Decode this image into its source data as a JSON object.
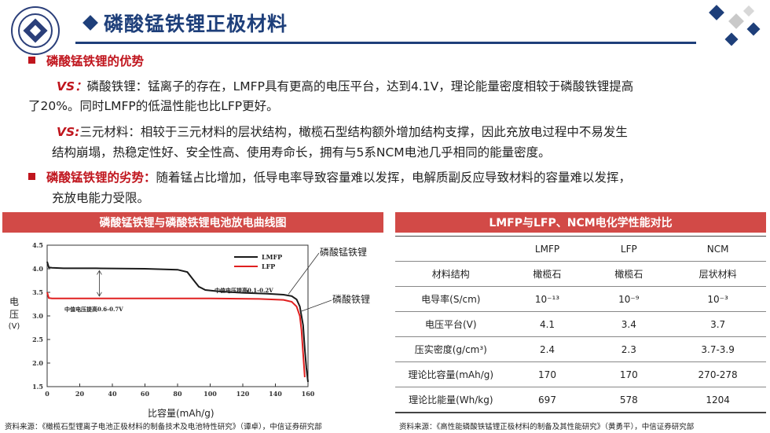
{
  "header": {
    "title": "磷酸锰铁锂正极材料",
    "logo_text": "CENTRAL SOUTH UNIVERSITY"
  },
  "advantages": {
    "heading": "磷酸锰铁锂的优势",
    "vs1_label": "VS：",
    "vs1_line1": "磷酸铁锂：锰离子的存在，LMFP具有更高的电压平台，达到4.1V，理论能量密度相较于磷酸铁锂提高",
    "vs1_line2": "了20%。同时LMFP的低温性能也比LFP更好。",
    "vs2_label": "VS:",
    "vs2_line1": "三元材料：相较于三元材料的层状结构，橄榄石型结构额外增加结构支撑，因此充放电过程中不易发生",
    "vs2_line2": "结构崩塌，热稳定性好、安全性高、使用寿命长，拥有与5系NCM电池几乎相同的能量密度。"
  },
  "disadvantages": {
    "heading": "磷酸锰铁锂的劣势：",
    "line1": "随着锰占比增加，低导电率导致容量难以发挥，电解质副反应导致材料的容量难以发挥，",
    "line2": "充放电能力受限。"
  },
  "left_panel": {
    "title": "磷酸锰铁锂与磷酸铁锂电池放电曲线图",
    "ylabel_chars": [
      "电",
      "压",
      "(V)"
    ],
    "xlabel": "比容量(mAh/g)",
    "callout_lmfp": "磷酸锰铁锂",
    "callout_lfp": "磷酸铁锂",
    "source": "资料来源：《橄榄石型锂离子电池正极材料的制备技术及电池特性研究》（谭卓），中信证券研究部"
  },
  "chart_data": {
    "type": "line",
    "xlabel": "比容量(mAh/g)",
    "ylabel": "电压(V)",
    "xlim": [
      0,
      160
    ],
    "ylim": [
      1.5,
      4.5
    ],
    "xticks": [
      "0",
      "20",
      "40",
      "60",
      "80",
      "100",
      "120",
      "140",
      "160"
    ],
    "yticks": [
      "1.5",
      "2.0",
      "2.5",
      "3.0",
      "3.5",
      "4.0",
      "4.5"
    ],
    "annotations": [
      "中值电压提高0.1-0.2V",
      "中值电压提高0.6-0.7V"
    ],
    "series": [
      {
        "name": "LMFP",
        "color": "#1a1a1a",
        "x": [
          0,
          1,
          3,
          10,
          30,
          60,
          80,
          86,
          90,
          93,
          97,
          105,
          120,
          135,
          145,
          150,
          153,
          155,
          157,
          158,
          159,
          160
        ],
        "y": [
          4.15,
          4.03,
          4.02,
          4.01,
          4.01,
          4.0,
          3.98,
          3.93,
          3.75,
          3.62,
          3.55,
          3.52,
          3.49,
          3.47,
          3.45,
          3.42,
          3.35,
          3.2,
          2.8,
          2.3,
          1.9,
          1.6
        ]
      },
      {
        "name": "LFP",
        "color": "#e02020",
        "x": [
          0,
          1,
          3,
          20,
          60,
          100,
          130,
          145,
          150,
          153,
          155,
          156,
          157,
          158
        ],
        "y": [
          3.5,
          3.38,
          3.37,
          3.37,
          3.37,
          3.37,
          3.36,
          3.34,
          3.3,
          3.2,
          3.0,
          2.7,
          2.2,
          1.7
        ]
      }
    ]
  },
  "right_panel": {
    "title": "LMFP与LFP、NCM电化学性能对比",
    "source": "资料来源：《高性能磷酸铁锰锂正极材料的制备及其性能研究》（黄勇平），中信证券研究部",
    "columns": [
      "",
      "LMFP",
      "LFP",
      "NCM"
    ],
    "rows": [
      [
        "材料结构",
        "橄榄石",
        "橄榄石",
        "层状材料"
      ],
      [
        "电导率(S/cm)",
        "10⁻¹³",
        "10⁻⁹",
        "10⁻³"
      ],
      [
        "电压平台(V)",
        "4.1",
        "3.4",
        "3.7"
      ],
      [
        "压实密度(g/cm³)",
        "2.4",
        "2.3",
        "3.7-3.9"
      ],
      [
        "理论比容量(mAh/g)",
        "170",
        "170",
        "270-278"
      ],
      [
        "理论比能量(Wh/kg)",
        "697",
        "578",
        "1204"
      ]
    ]
  }
}
